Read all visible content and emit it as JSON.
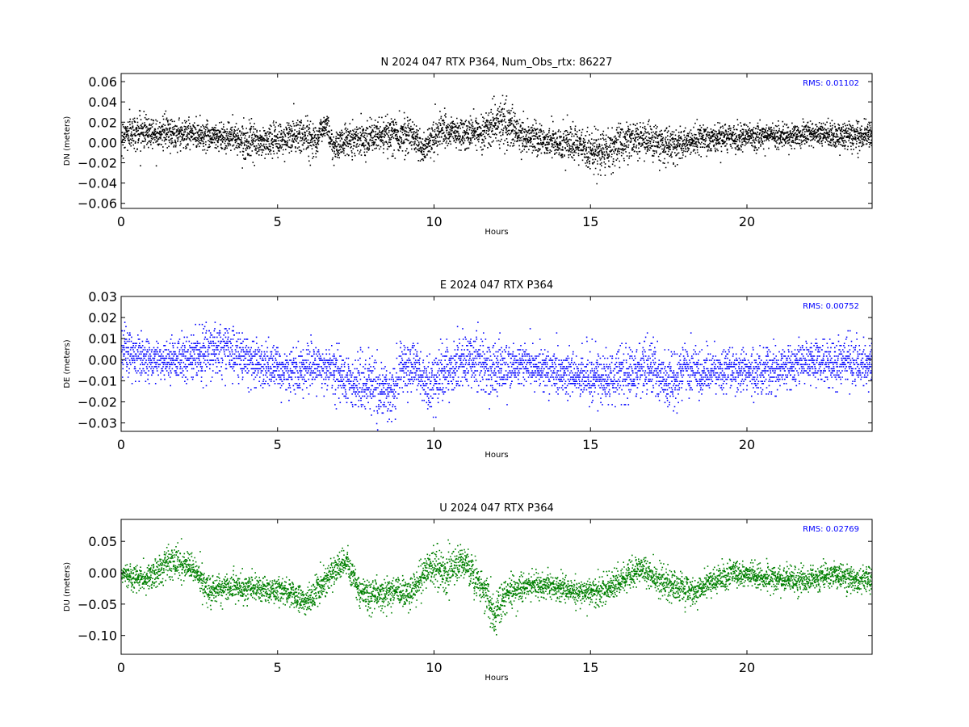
{
  "figure": {
    "x_label": "Hours",
    "x_range": [
      0,
      24
    ],
    "x_ticks": [
      0,
      5,
      10,
      15,
      20
    ]
  },
  "chart_data": [
    {
      "type": "scatter",
      "title": "N 2024 047 RTX  P364, Num_Obs_rtx: 86227",
      "xlabel": "Hours",
      "ylabel": "DN (meters)",
      "xlim": [
        0,
        24
      ],
      "ylim": [
        -0.065,
        0.068
      ],
      "yticks": [
        "0.06",
        "0.04",
        "0.02",
        "0.00",
        "−0.02",
        "−0.04",
        "−0.06"
      ],
      "ytick_values": [
        0.06,
        0.04,
        0.02,
        0.0,
        -0.02,
        -0.04,
        -0.06
      ],
      "xticks": [
        0,
        5,
        10,
        15,
        20
      ],
      "rms_text": "RMS:  0.01102",
      "color": "#000000",
      "grid": false,
      "num_obs": 86227,
      "envelope": {
        "x": [
          0,
          0.6,
          1.5,
          2.5,
          3.5,
          4.3,
          5.0,
          5.7,
          6.2,
          6.55,
          6.75,
          7.2,
          8.0,
          8.8,
          9.3,
          9.6,
          9.75,
          10.2,
          11.0,
          11.8,
          12.2,
          12.7,
          13.3,
          14.0,
          14.6,
          15.2,
          15.6,
          16.2,
          16.8,
          17.6,
          18.2,
          19.0,
          20.0,
          21.0,
          22.0,
          23.0,
          24.0
        ],
        "mid": [
          0.008,
          0.012,
          0.01,
          0.008,
          0.006,
          0.0,
          0.003,
          0.008,
          0.004,
          0.02,
          -0.005,
          0.004,
          0.006,
          0.008,
          0.01,
          -0.008,
          0.0,
          0.012,
          0.008,
          0.015,
          0.022,
          0.008,
          0.004,
          0.0,
          -0.004,
          -0.01,
          -0.006,
          0.004,
          0.003,
          -0.004,
          0.002,
          0.004,
          0.006,
          0.008,
          0.008,
          0.007,
          0.007
        ],
        "half_width": [
          0.015,
          0.017,
          0.015,
          0.014,
          0.014,
          0.015,
          0.016,
          0.02,
          0.016,
          0.012,
          0.013,
          0.015,
          0.015,
          0.018,
          0.017,
          0.014,
          0.016,
          0.017,
          0.015,
          0.02,
          0.022,
          0.018,
          0.016,
          0.015,
          0.018,
          0.02,
          0.02,
          0.018,
          0.018,
          0.016,
          0.014,
          0.014,
          0.012,
          0.012,
          0.012,
          0.013,
          0.014
        ]
      }
    },
    {
      "type": "scatter",
      "title": "E 2024 047 RTX  P364",
      "xlabel": "Hours",
      "ylabel": "DE (meters)",
      "xlim": [
        0,
        24
      ],
      "ylim": [
        -0.034,
        0.03
      ],
      "yticks": [
        "0.03",
        "0.02",
        "0.01",
        "0.00",
        "−0.01",
        "−0.02",
        "−0.03"
      ],
      "ytick_values": [
        0.03,
        0.02,
        0.01,
        0.0,
        -0.01,
        -0.02,
        -0.03
      ],
      "xticks": [
        0,
        5,
        10,
        15,
        20
      ],
      "rms_text": "RMS:  0.00752",
      "color": "#0000ff",
      "grid": false,
      "envelope": {
        "x": [
          0,
          1.0,
          2.0,
          3.0,
          3.8,
          4.5,
          5.2,
          6.0,
          6.6,
          6.8,
          7.3,
          8.0,
          8.6,
          9.0,
          9.3,
          9.8,
          10.5,
          11.2,
          12.0,
          12.5,
          13.0,
          14.0,
          15.0,
          15.6,
          16.3,
          17.0,
          17.5,
          18.0,
          18.5,
          19.5,
          20.5,
          21.5,
          22.5,
          23.3,
          24.0
        ],
        "mid": [
          0.004,
          0.0,
          0.001,
          0.006,
          0.002,
          -0.002,
          -0.005,
          -0.003,
          -0.003,
          -0.005,
          -0.01,
          -0.012,
          -0.016,
          -0.004,
          -0.002,
          -0.012,
          -0.004,
          0.0,
          -0.004,
          -0.002,
          -0.002,
          -0.006,
          -0.008,
          -0.008,
          -0.006,
          -0.004,
          -0.012,
          -0.003,
          -0.006,
          -0.004,
          -0.005,
          -0.002,
          0.0,
          -0.002,
          -0.002
        ],
        "half_width": [
          0.01,
          0.009,
          0.01,
          0.012,
          0.01,
          0.01,
          0.01,
          0.011,
          0.01,
          0.012,
          0.012,
          0.013,
          0.013,
          0.012,
          0.012,
          0.012,
          0.013,
          0.014,
          0.012,
          0.01,
          0.009,
          0.01,
          0.011,
          0.011,
          0.011,
          0.012,
          0.012,
          0.011,
          0.01,
          0.01,
          0.01,
          0.01,
          0.011,
          0.011,
          0.01
        ]
      }
    },
    {
      "type": "scatter",
      "title": "U 2024 047 RTX  P364",
      "xlabel": "Hours",
      "ylabel": "DU (meters)",
      "xlim": [
        0,
        24
      ],
      "ylim": [
        -0.13,
        0.085
      ],
      "yticks": [
        "0.05",
        "0.00",
        "−0.05",
        "−0.10"
      ],
      "ytick_values": [
        0.05,
        0.0,
        -0.05,
        -0.1
      ],
      "xticks": [
        0,
        5,
        10,
        15,
        20
      ],
      "rms_text": "RMS:  0.02769",
      "color": "#008000",
      "grid": false,
      "envelope": {
        "x": [
          0,
          0.8,
          1.6,
          2.2,
          2.8,
          3.5,
          4.5,
          5.3,
          5.9,
          6.4,
          6.9,
          7.2,
          7.6,
          8.3,
          8.8,
          9.3,
          9.8,
          10.4,
          10.8,
          11.5,
          11.9,
          12.3,
          13.0,
          13.8,
          14.5,
          15.2,
          16.0,
          16.6,
          17.3,
          17.9,
          18.3,
          19.0,
          19.6,
          20.2,
          21.0,
          22.0,
          22.8,
          23.5,
          24.0
        ],
        "mid": [
          0.0,
          -0.01,
          0.02,
          0.01,
          -0.03,
          -0.02,
          -0.025,
          -0.03,
          -0.045,
          -0.02,
          0.01,
          0.02,
          -0.03,
          -0.035,
          -0.03,
          -0.03,
          0.01,
          0.0,
          0.02,
          -0.02,
          -0.06,
          -0.03,
          -0.02,
          -0.02,
          -0.03,
          -0.03,
          -0.01,
          0.005,
          -0.015,
          -0.025,
          -0.03,
          -0.01,
          0.0,
          -0.005,
          -0.01,
          -0.01,
          0.0,
          -0.015,
          -0.01
        ],
        "half_width": [
          0.02,
          0.022,
          0.025,
          0.025,
          0.022,
          0.02,
          0.02,
          0.022,
          0.022,
          0.025,
          0.022,
          0.022,
          0.025,
          0.025,
          0.025,
          0.025,
          0.03,
          0.03,
          0.03,
          0.03,
          0.03,
          0.025,
          0.02,
          0.02,
          0.022,
          0.022,
          0.022,
          0.022,
          0.025,
          0.025,
          0.022,
          0.02,
          0.02,
          0.02,
          0.02,
          0.022,
          0.022,
          0.022,
          0.022
        ]
      }
    }
  ]
}
